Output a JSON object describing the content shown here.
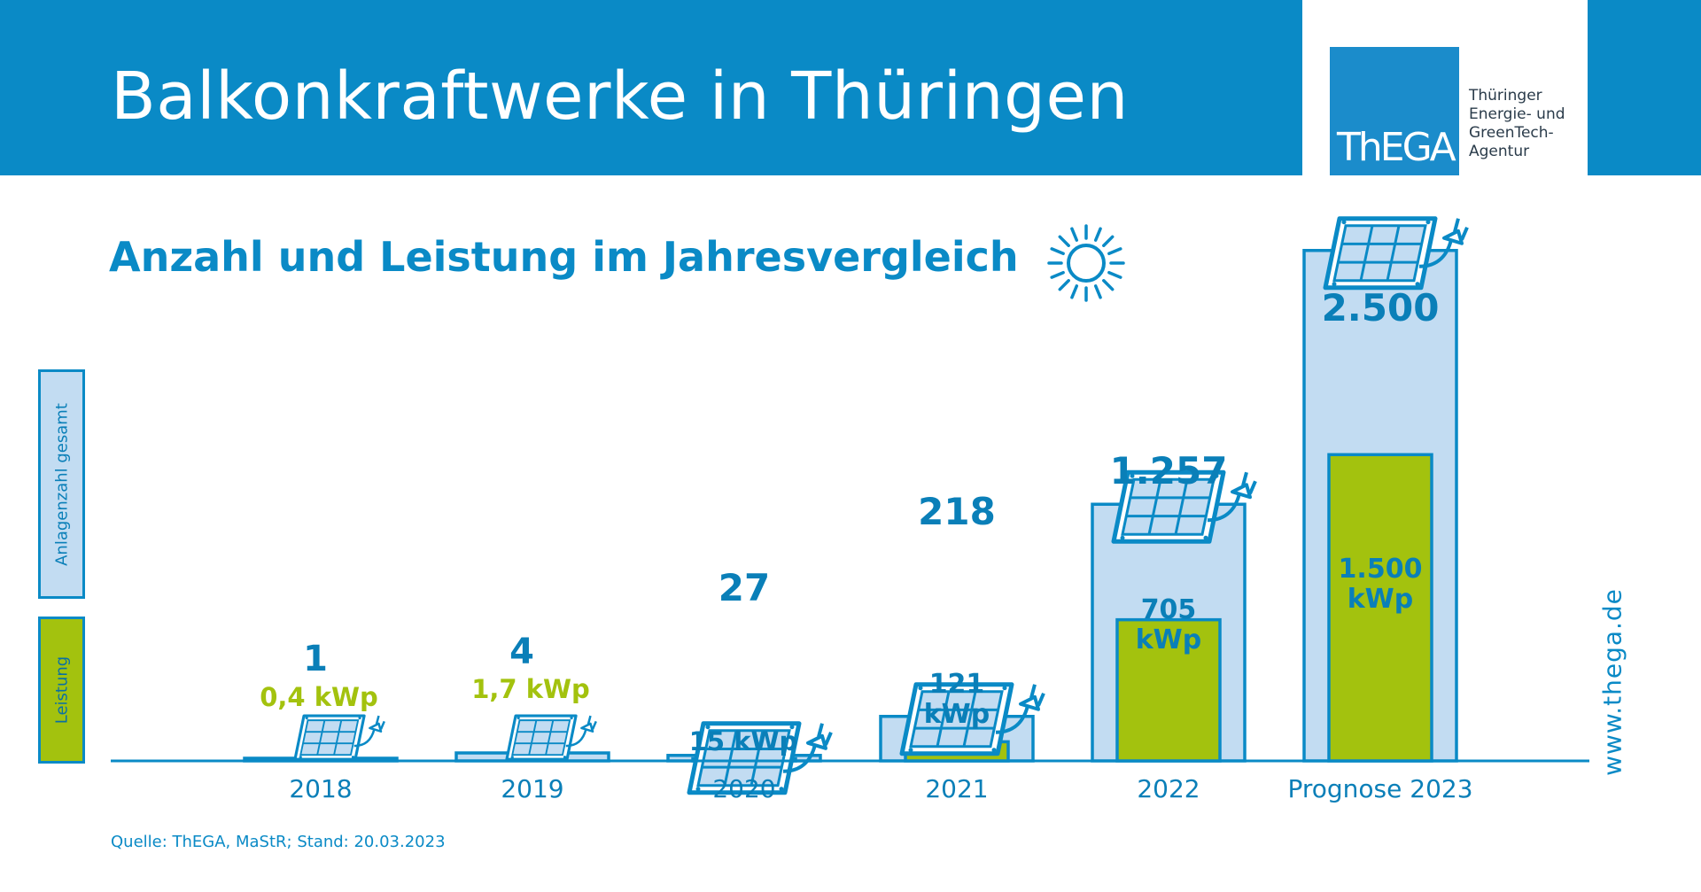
{
  "header": {
    "title": "Balkonkraftwerke in Thüringen"
  },
  "logo": {
    "wordmark": "ThEGA",
    "lines": [
      "Thüringer",
      "Energie- und",
      "GreenTech-",
      "Agentur"
    ]
  },
  "subtitle": "Anzahl und Leistung im Jahresvergleich",
  "legend": {
    "count_label": "Anlagenzahl gesamt",
    "power_label": "Leistung"
  },
  "source": "Quelle: ThEGA, MaStR; Stand: 20.03.2023",
  "website": "www.thega.de",
  "colors": {
    "brand_blue": "#0a8ac6",
    "bar_light_blue": "#c2dcf2",
    "green": "#a3c20e"
  },
  "icons": [
    "solar-panel-plug-icon",
    "sun-icon"
  ],
  "chart_data": {
    "type": "bar",
    "categories": [
      "2018",
      "2019",
      "2020",
      "2021",
      "2022",
      "Prognose 2023"
    ],
    "series": [
      {
        "name": "Anlagenzahl gesamt",
        "values": [
          1,
          4,
          27,
          218,
          1257,
          2500
        ],
        "labels": [
          "1",
          "4",
          "27",
          "218",
          "1.257",
          "2.500"
        ]
      },
      {
        "name": "Leistung",
        "values": [
          0.4,
          1.7,
          15,
          121,
          705,
          1500
        ],
        "labels": [
          "0,4 kWp",
          "1,7 kWp",
          "15 kWp",
          "121 kWp",
          "705 kWp",
          "1.500 kWp"
        ]
      }
    ],
    "title": "Anzahl und Leistung im Jahresvergleich"
  }
}
